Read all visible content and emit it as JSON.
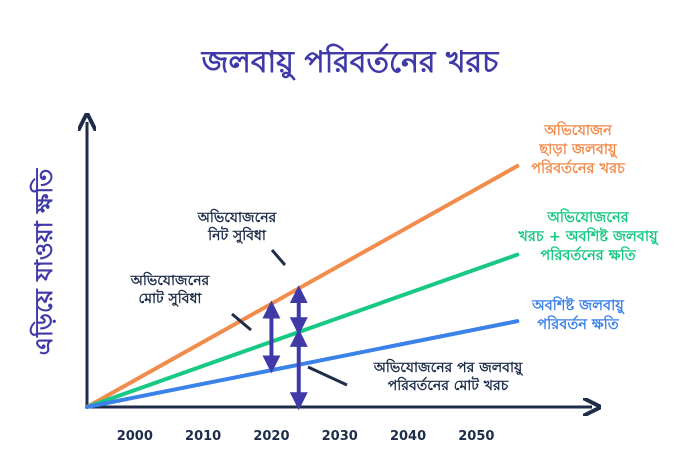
{
  "chart_data": {
    "type": "line",
    "title": "জলবায়ু পরিবর্তনের খরচ",
    "ylabel": "এড়িয়ে যাওয়া ক্ষতি",
    "xlabel": "",
    "x_ticks": [
      2000,
      2010,
      2020,
      2030,
      2040,
      2050
    ],
    "xlim": [
      1993,
      2064
    ],
    "ylim": [
      0,
      100
    ],
    "grid": false,
    "series": [
      {
        "name": "অভিযোজন ছাড়া জলবায়ু পরিবর্তনের খরচ",
        "label_lines": [
          "অভিযোজন",
          "ছাড়া জলবায়ু",
          "পরিবর্তনের খরচ"
        ],
        "color": "#f28c4c",
        "x": [
          1993,
          2056
        ],
        "y": [
          0,
          87
        ]
      },
      {
        "name": "অভিযোজনের খরচ + অবশিষ্ট জলবায়ু পরিবর্তনের ক্ষতি",
        "label_lines": [
          "অভিযোজনের",
          "খরচ + অবশিষ্ট জলবায়ু",
          "পরিবর্তনের ক্ষতি"
        ],
        "color": "#17c983",
        "x": [
          1993,
          2056
        ],
        "y": [
          0,
          55
        ]
      },
      {
        "name": "অবশিষ্ট জলবায়ু পরিবর্তন ক্ষতি",
        "label_lines": [
          "অবশিষ্ট জলবায়ু",
          "পরিবর্তন ক্ষতি"
        ],
        "color": "#3b82e8",
        "x": [
          1993,
          2056
        ],
        "y": [
          0,
          31
        ]
      }
    ],
    "annotations": [
      {
        "id": "gross-benefit",
        "text_lines": [
          "অভিযোজনের",
          "মোট সুবিধা"
        ],
        "arrow_x": 2020,
        "from_series": 0,
        "to_series": 2
      },
      {
        "id": "net-benefit",
        "text_lines": [
          "অভিযোজনের",
          "নিট সুবিধা"
        ],
        "arrow_x": 2024,
        "from_series": 0,
        "to_series": 1
      },
      {
        "id": "total-cost",
        "text_lines": [
          "অভিযোজনের পর জলবায়ু",
          "পরিবর্তনের মোট খরচ"
        ],
        "arrow_x": 2024,
        "from_series": 1,
        "to_value": 0
      }
    ],
    "colors": {
      "title": "#3f3aa8",
      "axis": "#1e2d4a",
      "arrow": "#3f3aa8"
    }
  }
}
